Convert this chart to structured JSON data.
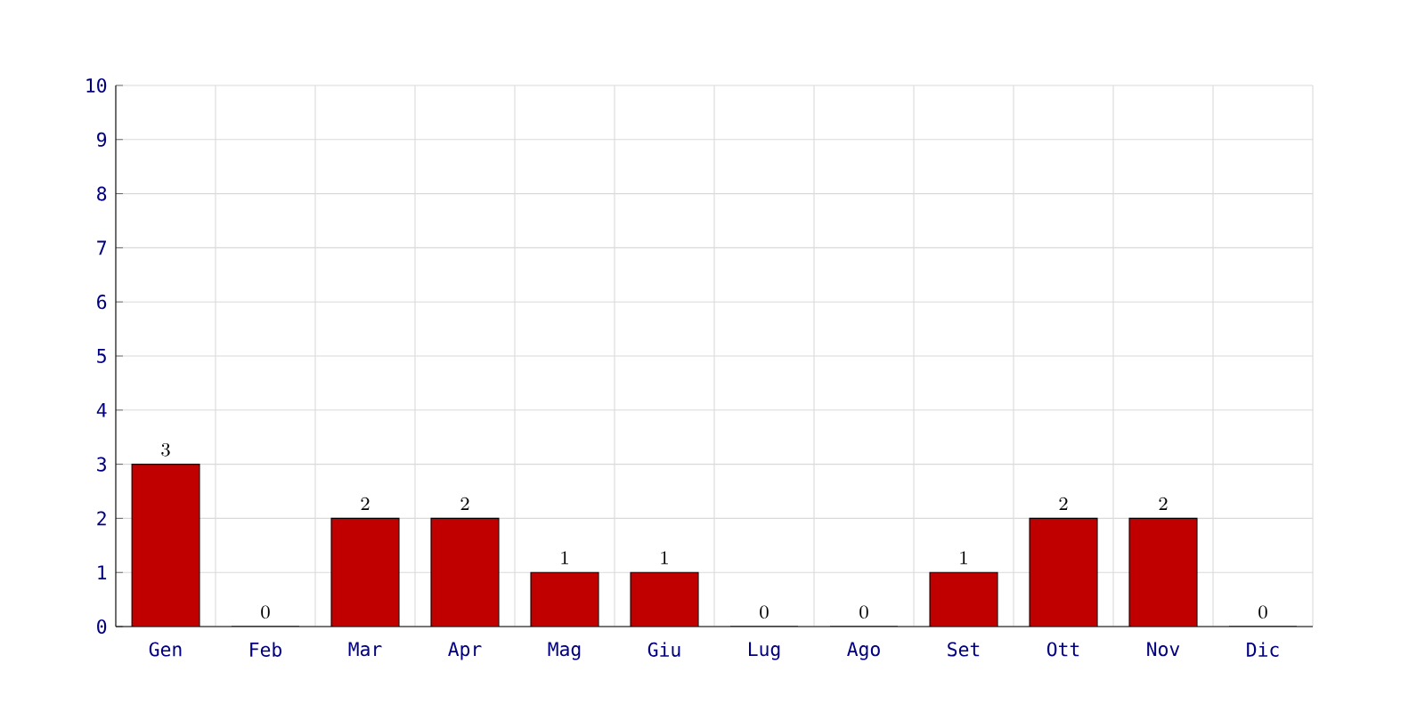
{
  "chart_data": {
    "type": "bar",
    "categories": [
      "Gen",
      "Feb",
      "Mar",
      "Apr",
      "Mag",
      "Giu",
      "Lug",
      "Ago",
      "Set",
      "Ott",
      "Nov",
      "Dic"
    ],
    "values": [
      3,
      0,
      2,
      2,
      1,
      1,
      0,
      0,
      1,
      2,
      2,
      0
    ],
    "color": "#c00000",
    "ylim": [
      0,
      10
    ],
    "yticks": [
      0,
      1,
      2,
      3,
      4,
      5,
      6,
      7,
      8,
      9,
      10
    ],
    "grid": true,
    "data_labels": true
  }
}
